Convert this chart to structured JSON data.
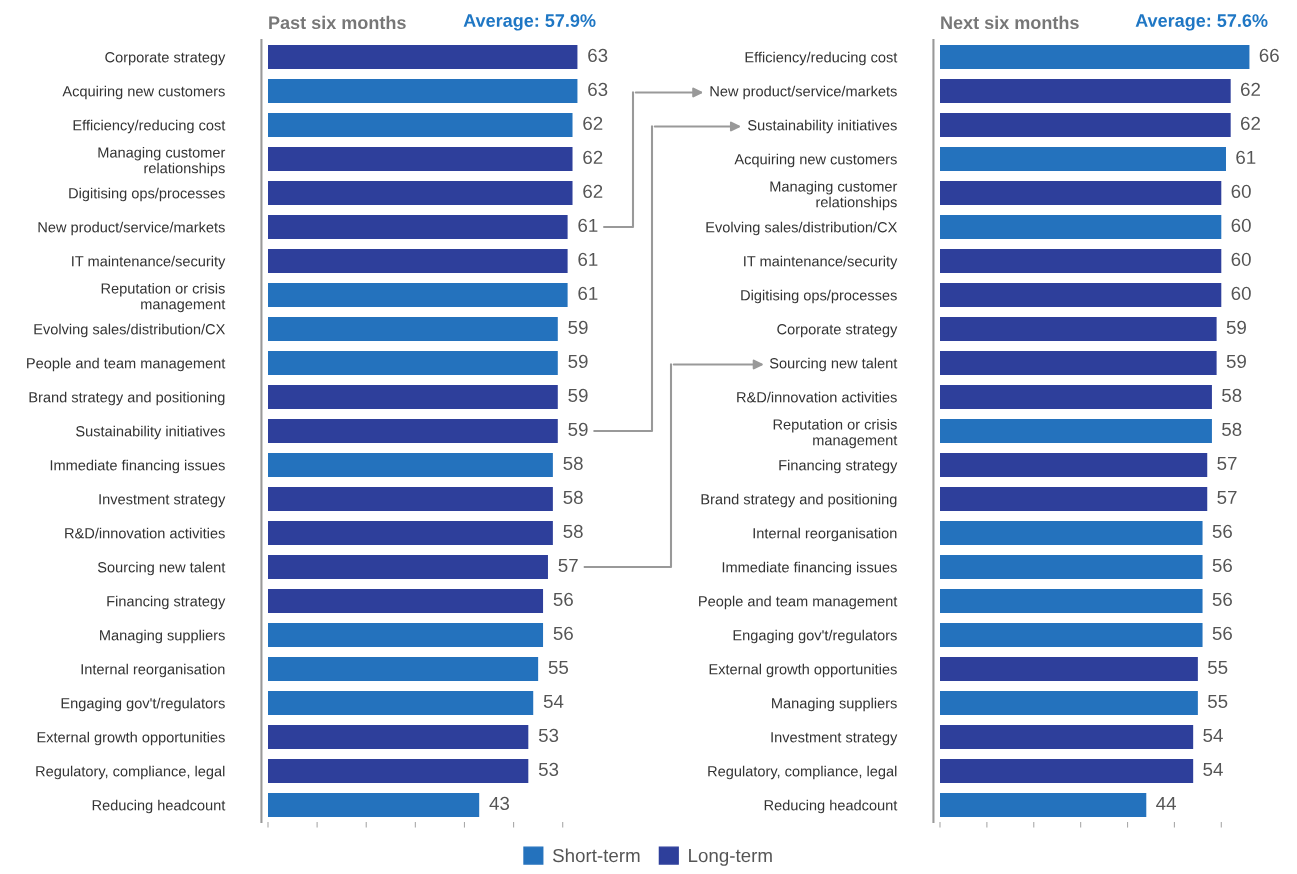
{
  "chart_data": [
    {
      "type": "bar",
      "orientation": "horizontal",
      "title": "Past six months",
      "annotations": [
        "Average: 57.9%"
      ],
      "categories": [
        "Corporate strategy",
        "Acquiring new customers",
        "Efficiency/reducing cost",
        "Managing customer\nrelationships",
        "Digitising ops/processes",
        "New product/service/markets",
        "IT maintenance/security",
        "Reputation or crisis\nmanagement",
        "Evolving sales/distribution/CX",
        "People and team management",
        "Brand strategy and positioning",
        "Sustainability initiatives",
        "Immediate financing issues",
        "Investment strategy",
        "R&D/innovation activities",
        "Sourcing new talent",
        "Financing strategy",
        "Managing suppliers",
        "Internal reorganisation",
        "Engaging gov't/regulators",
        "External growth opportunities",
        "Regulatory, compliance, legal",
        "Reducing headcount"
      ],
      "series": [
        {
          "name": "Short-term",
          "color": "#2472bd",
          "values": [
            null,
            63,
            62,
            null,
            null,
            null,
            null,
            61,
            59,
            59,
            null,
            null,
            58,
            null,
            null,
            null,
            null,
            56,
            55,
            54,
            null,
            null,
            43
          ]
        },
        {
          "name": "Long-term",
          "color": "#2e3f9b",
          "values": [
            63,
            null,
            null,
            62,
            62,
            61,
            61,
            null,
            null,
            null,
            59,
            59,
            null,
            58,
            58,
            57,
            56,
            null,
            null,
            null,
            53,
            53,
            null
          ]
        }
      ],
      "xticks": [
        {
          "value": 0,
          "label": null
        },
        {
          "value": 10,
          "label": null
        },
        {
          "value": 20,
          "label": null
        },
        {
          "value": 30,
          "label": null
        },
        {
          "value": 40,
          "label": null
        },
        {
          "value": 50,
          "label": null
        },
        {
          "value": 60,
          "label": null
        }
      ],
      "tick_labels": "y",
      "data_labels": true,
      "legend": "bottom"
    },
    {
      "type": "bar",
      "orientation": "horizontal",
      "title": "Next six months",
      "annotations": [
        "Average: 57.6%"
      ],
      "categories": [
        "Efficiency/reducing cost",
        "New product/service/markets",
        "Sustainability initiatives",
        "Acquiring new customers",
        "Managing customer\nrelationships",
        "Evolving sales/distribution/CX",
        "IT maintenance/security",
        "Digitising ops/processes",
        "Corporate strategy",
        "Sourcing new talent",
        "R&D/innovation activities",
        "Reputation or crisis\nmanagement",
        "Financing strategy",
        "Brand strategy and positioning",
        "Internal reorganisation",
        "Immediate financing issues",
        "People and team management",
        "Engaging gov't/regulators",
        "External growth opportunities",
        "Managing suppliers",
        "Investment strategy",
        "Regulatory, compliance, legal",
        "Reducing headcount"
      ],
      "series": [
        {
          "color": "#2472bd",
          "values": [
            66,
            null,
            null,
            61,
            null,
            60,
            null,
            null,
            null,
            null,
            null,
            58,
            null,
            null,
            56,
            56,
            56,
            56,
            null,
            55,
            null,
            null,
            44
          ]
        },
        {
          "color": "#2e3f9b",
          "values": [
            null,
            62,
            62,
            null,
            60,
            null,
            60,
            60,
            59,
            59,
            58,
            null,
            57,
            57,
            null,
            null,
            null,
            null,
            55,
            null,
            54,
            54,
            null
          ]
        }
      ],
      "xticks": [
        {
          "value": 0,
          "label": null
        },
        {
          "value": 10,
          "label": null
        },
        {
          "value": 20,
          "label": null
        },
        {
          "value": 30,
          "label": null
        },
        {
          "value": 40,
          "label": null
        },
        {
          "value": 50,
          "label": null
        },
        {
          "value": 60,
          "label": null
        }
      ],
      "tick_labels": "y",
      "data_labels": true
    }
  ]
}
